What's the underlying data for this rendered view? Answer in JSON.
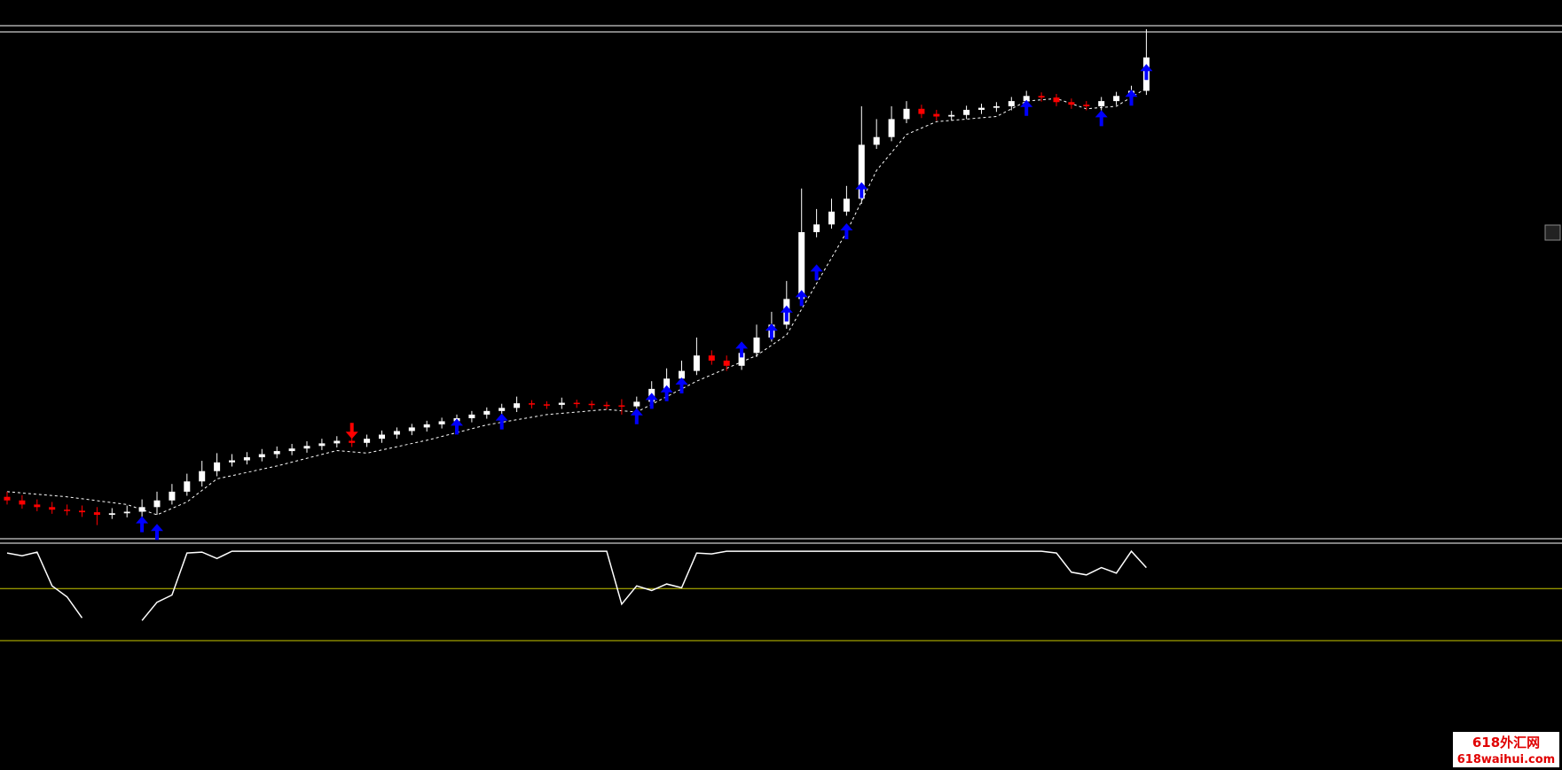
{
  "chart_data": [
    {
      "type": "candlestick",
      "ylim": [
        0,
        100
      ],
      "bull_color": "#ffffff",
      "bear_color": "#ff0000",
      "up_color": "#0000ff",
      "down_color": "#ff0000",
      "trail_color": "#ffffff",
      "open": [
        8.5,
        7.8,
        7.0,
        6.5,
        6.0,
        5.8,
        5.5,
        5.0,
        5.3,
        5.6,
        6.5,
        7.8,
        9.5,
        11.5,
        13.5,
        15.2,
        15.6,
        16.2,
        16.8,
        17.4,
        17.9,
        18.4,
        18.9,
        19.4,
        19.0,
        19.8,
        20.6,
        21.3,
        22.0,
        22.6,
        23.2,
        23.8,
        24.5,
        25.2,
        25.8,
        26.7,
        26.5,
        26.4,
        26.8,
        26.6,
        26.4,
        26.3,
        26.1,
        27.0,
        29.5,
        31.5,
        33.0,
        36.0,
        35.0,
        34.0,
        36.5,
        39.5,
        42.0,
        47.0,
        60.0,
        61.5,
        64.0,
        66.5,
        77.0,
        78.5,
        82.0,
        84.0,
        83.0,
        82.5,
        82.8,
        83.8,
        84.2,
        84.5,
        85.5,
        86.5,
        86.2,
        85.3,
        84.8,
        84.5,
        85.5,
        86.5,
        87.5
      ],
      "high": [
        9.5,
        8.8,
        8.0,
        7.5,
        7.0,
        6.8,
        6.5,
        6.3,
        6.8,
        8.0,
        9.5,
        11.0,
        13.0,
        15.5,
        17.0,
        16.8,
        17.2,
        17.8,
        18.3,
        18.8,
        19.3,
        19.8,
        20.3,
        20.0,
        20.6,
        21.4,
        22.0,
        22.7,
        23.3,
        23.9,
        24.5,
        25.2,
        25.9,
        26.6,
        28.0,
        27.3,
        27.1,
        27.8,
        27.4,
        27.2,
        27.0,
        27.5,
        28.0,
        31.0,
        33.5,
        35.0,
        39.5,
        37.0,
        36.0,
        38.5,
        42.0,
        44.5,
        50.5,
        68.5,
        64.5,
        66.5,
        69.0,
        84.5,
        82.0,
        84.5,
        85.5,
        84.8,
        83.8,
        83.6,
        84.6,
        85.0,
        85.3,
        86.3,
        87.5,
        87.2,
        86.9,
        86.0,
        85.5,
        86.3,
        87.3,
        88.5,
        99.5
      ],
      "low": [
        7.0,
        6.2,
        5.7,
        5.2,
        4.9,
        4.6,
        3.0,
        4.2,
        4.5,
        4.5,
        5.0,
        7.0,
        8.7,
        10.5,
        12.5,
        14.4,
        14.8,
        15.4,
        16.0,
        16.6,
        17.1,
        17.6,
        18.1,
        18.2,
        18.2,
        19.0,
        19.8,
        20.5,
        21.2,
        21.8,
        22.4,
        23.0,
        23.7,
        24.4,
        25.0,
        25.7,
        25.6,
        25.6,
        25.8,
        25.6,
        25.5,
        24.5,
        25.3,
        26.2,
        28.7,
        30.7,
        32.2,
        34.2,
        33.0,
        33.2,
        35.7,
        38.7,
        41.2,
        46.0,
        59.0,
        60.7,
        63.2,
        65.5,
        76.2,
        77.7,
        81.2,
        82.2,
        81.7,
        81.7,
        82.0,
        83.0,
        83.4,
        83.7,
        84.7,
        85.4,
        84.5,
        84.0,
        83.7,
        83.7,
        84.7,
        85.7,
        86.7
      ],
      "close": [
        7.8,
        7.0,
        6.5,
        6.0,
        5.8,
        5.5,
        5.0,
        5.3,
        5.6,
        6.5,
        7.8,
        9.5,
        11.5,
        13.5,
        15.2,
        15.6,
        16.2,
        16.8,
        17.4,
        17.9,
        18.4,
        18.9,
        19.4,
        19.0,
        19.8,
        20.6,
        21.3,
        22.0,
        22.6,
        23.2,
        23.8,
        24.5,
        25.2,
        25.8,
        26.7,
        26.5,
        26.4,
        26.8,
        26.6,
        26.4,
        26.3,
        26.1,
        27.0,
        29.5,
        31.5,
        33.0,
        36.0,
        35.0,
        34.0,
        36.5,
        39.5,
        42.0,
        47.0,
        60.0,
        61.5,
        64.0,
        66.5,
        77.0,
        78.5,
        82.0,
        84.0,
        83.0,
        82.5,
        82.8,
        83.8,
        84.2,
        84.5,
        85.5,
        86.5,
        86.2,
        85.3,
        84.8,
        84.5,
        85.5,
        86.5,
        87.5,
        94.0
      ],
      "trail": {
        "x": [
          0,
          4,
          8,
          10,
          12,
          14,
          18,
          22,
          24,
          28,
          32,
          36,
          40,
          42,
          44,
          46,
          48,
          50,
          52,
          54,
          56,
          58,
          60,
          62,
          66,
          68,
          70,
          72,
          74,
          76
        ],
        "values": [
          9.5,
          8.5,
          7.0,
          5.0,
          7.5,
          12,
          14.5,
          17.5,
          17.0,
          19.5,
          22.5,
          24.5,
          25.5,
          25,
          28,
          31,
          33.5,
          36,
          40,
          50,
          60,
          72,
          79,
          81.5,
          82.5,
          85.5,
          86,
          84,
          84.5,
          88
        ]
      },
      "signals_up": {
        "x": [
          9,
          10,
          30,
          33,
          42,
          43,
          44,
          45,
          49,
          51,
          52,
          53,
          54,
          56,
          57,
          68,
          73,
          75,
          76
        ],
        "values": [
          3,
          1.5,
          22,
          23,
          24,
          27,
          28.5,
          30,
          37,
          40.5,
          44,
          47,
          52,
          60,
          68,
          84,
          82,
          86,
          91
        ]
      },
      "signals_down": {
        "x": [
          23
        ],
        "values": [
          21.5
        ]
      }
    },
    {
      "type": "line",
      "ylim": [
        0,
        100
      ],
      "color": "#ffffff",
      "level_color": "#c8c800",
      "levels": [
        57,
        0
      ],
      "values": [
        96,
        93,
        97,
        60,
        48,
        25,
        null,
        null,
        null,
        22,
        42,
        50,
        96,
        97,
        90,
        98,
        98,
        98,
        98,
        98,
        98,
        98,
        98,
        98,
        98,
        98,
        98,
        98,
        98,
        98,
        98,
        98,
        98,
        98,
        98,
        98,
        98,
        98,
        98,
        98,
        98,
        40,
        60,
        55,
        62,
        58,
        96,
        95,
        98,
        98,
        98,
        98,
        98,
        98,
        98,
        98,
        98,
        98,
        98,
        98,
        98,
        98,
        98,
        98,
        98,
        98,
        98,
        98,
        98,
        98,
        96,
        75,
        72,
        80,
        74,
        98,
        80
      ]
    }
  ],
  "watermark": {
    "line1": "618外汇网",
    "line2": "618waihui.com"
  }
}
